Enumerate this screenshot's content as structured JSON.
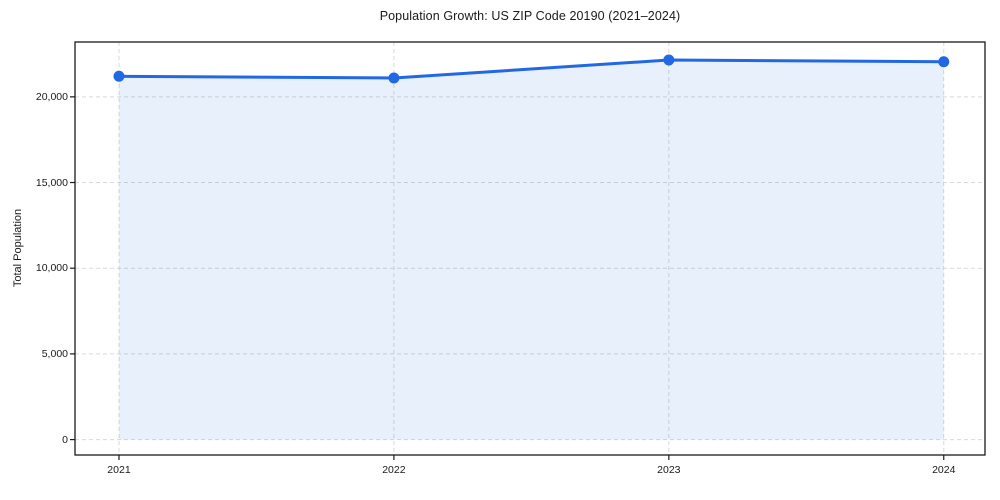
{
  "figure": {
    "background": "#ffffff"
  },
  "chart_data": {
    "type": "area",
    "title": "Population Growth: US ZIP Code 20190 (2021–2024)",
    "xlabel": "",
    "ylabel": "Total Population",
    "x": [
      2021,
      2022,
      2023,
      2024
    ],
    "x_tick_labels": [
      "2021",
      "2022",
      "2023",
      "2024"
    ],
    "series": [
      {
        "name": "Total Population",
        "values": [
          21200,
          21100,
          22150,
          22050
        ]
      }
    ],
    "y_ticks": [
      0,
      5000,
      10000,
      15000,
      20000
    ],
    "y_tick_labels": [
      "0",
      "5,000",
      "10,000",
      "15,000",
      "20,000"
    ],
    "xlim": [
      2020.84,
      2024.15
    ],
    "ylim": [
      -900,
      23200
    ],
    "grid": true,
    "grid_style": "dashed",
    "legend_position": "none",
    "fill_baseline": 0,
    "colors": {
      "line": "#2268e3",
      "marker": "#2268e3",
      "fill": "#2268e3",
      "fill_opacity": 0.1,
      "grid": "#d9d9d9",
      "spine": "#1a1a1a",
      "text": "#1a1a1a"
    },
    "line_width": 3,
    "marker_radius": 5.5
  }
}
